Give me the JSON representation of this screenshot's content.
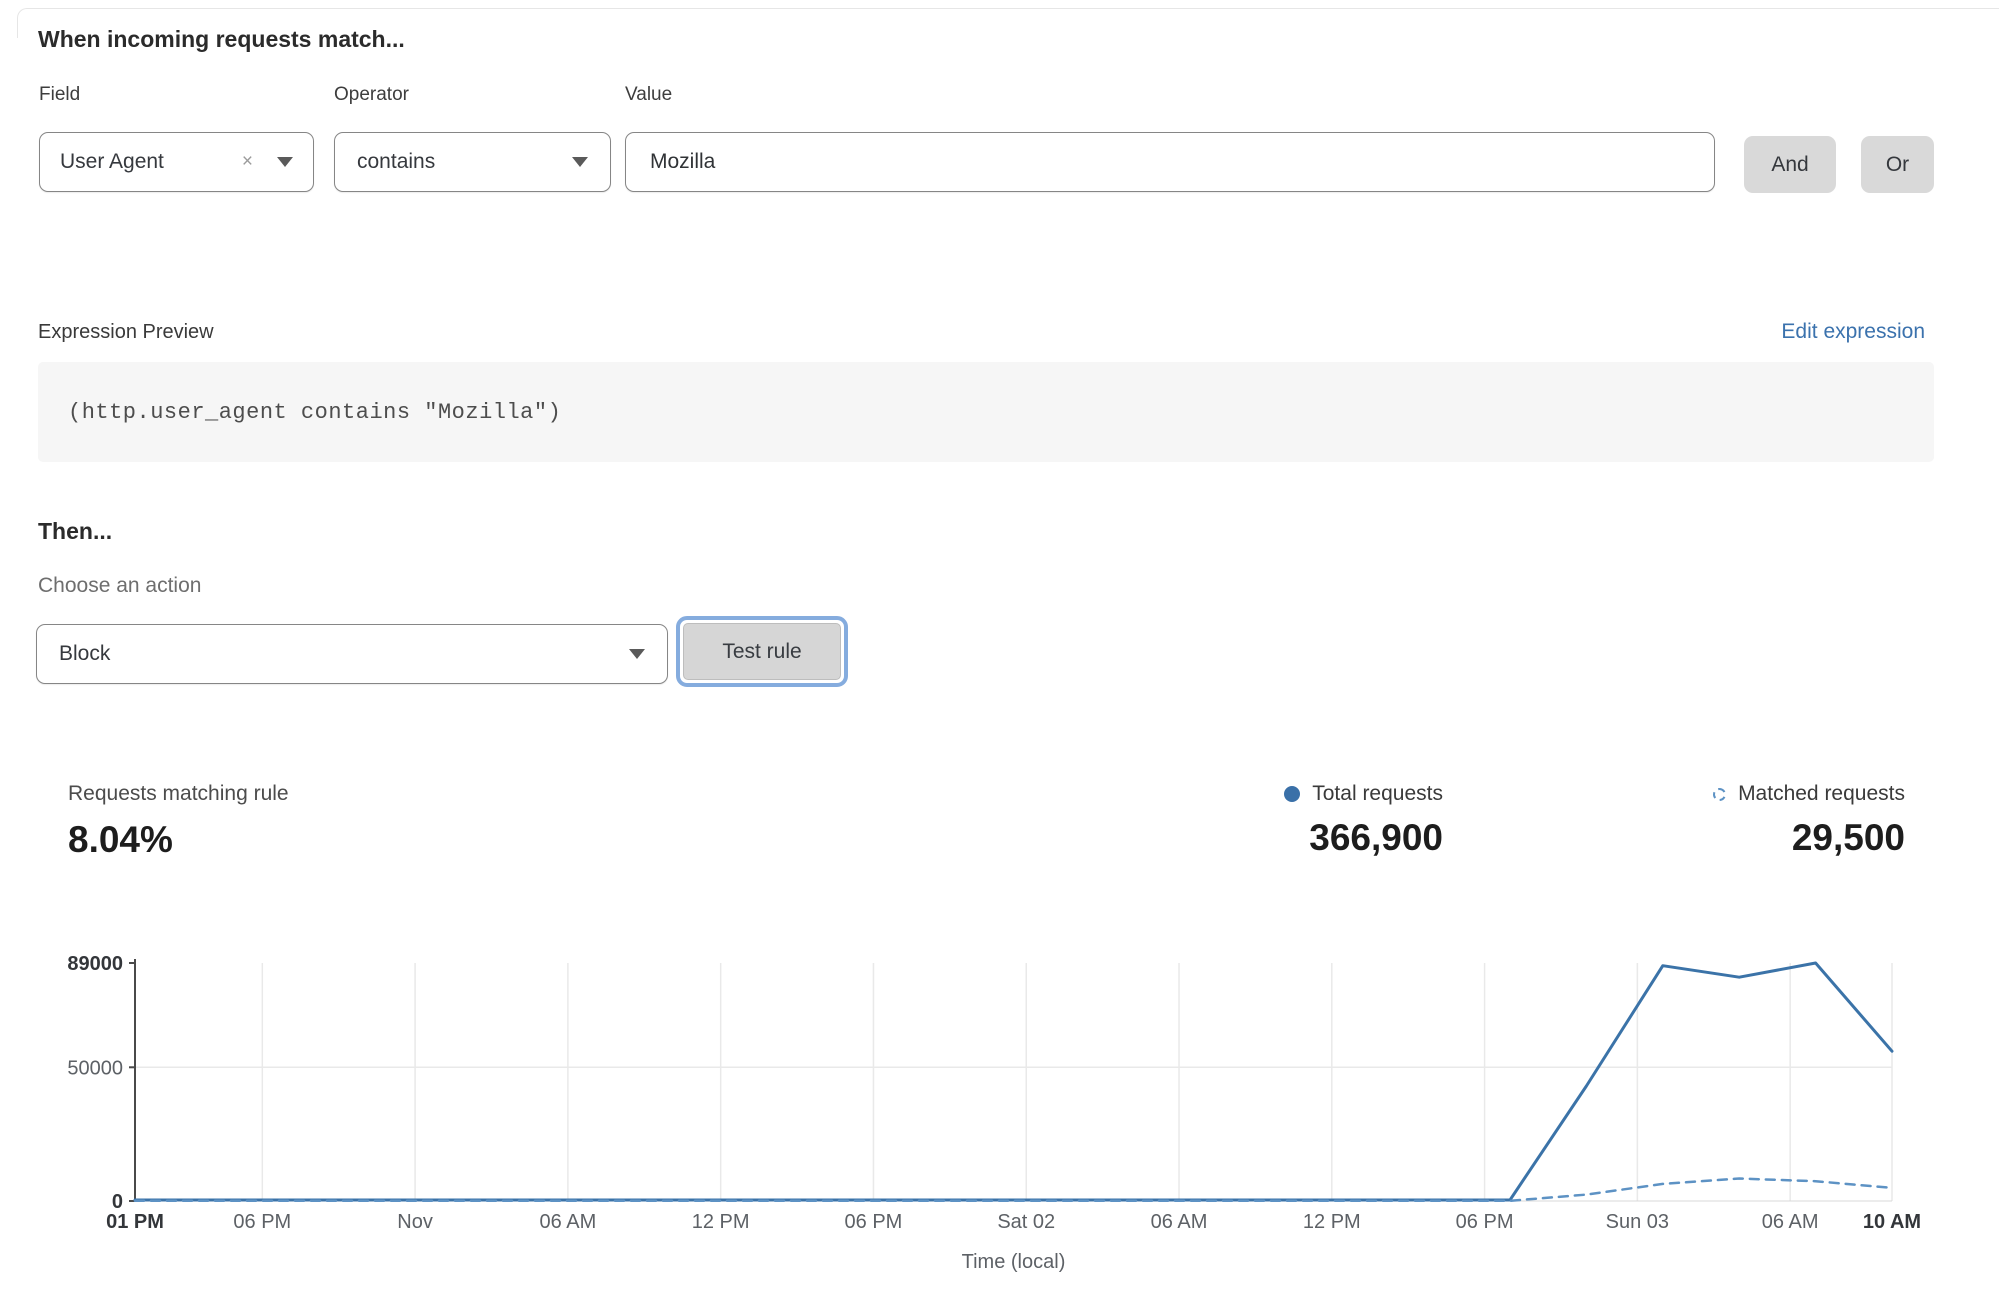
{
  "rule_builder": {
    "heading": "When incoming requests match...",
    "field": {
      "label": "Field",
      "value": "User Agent",
      "clear_icon": "×"
    },
    "operator": {
      "label": "Operator",
      "value": "contains"
    },
    "value": {
      "label": "Value",
      "value": "Mozilla"
    },
    "and_label": "And",
    "or_label": "Or"
  },
  "expression": {
    "label": "Expression Preview",
    "edit_link": "Edit expression",
    "code": "(http.user_agent contains \"Mozilla\")"
  },
  "action": {
    "heading": "Then...",
    "choose_label": "Choose an action",
    "selected": "Block",
    "test_button": "Test rule"
  },
  "stats": {
    "matching": {
      "label": "Requests matching rule",
      "value": "8.04%"
    },
    "total": {
      "label": "Total requests",
      "value": "366,900"
    },
    "matched": {
      "label": "Matched requests",
      "value": "29,500"
    }
  },
  "colors": {
    "accent_blue": "#3b72ad",
    "line_total": "#3b73a8",
    "line_matched": "#5d92c4",
    "button_gray": "#d9d9d9",
    "focus_ring": "#85acde"
  },
  "chart_data": {
    "type": "line",
    "title": "",
    "xlabel": "Time (local)",
    "ylabel": "",
    "ylim": [
      0,
      89000
    ],
    "hours_total": 69,
    "grid": "vertical-per-tick plus horizontal at 50000",
    "legend_position": "top-right above chart",
    "x_ticks": [
      {
        "h": 0,
        "label": "01 PM",
        "bold": true
      },
      {
        "h": 5,
        "label": "06 PM"
      },
      {
        "h": 11,
        "label": "Nov"
      },
      {
        "h": 17,
        "label": "06 AM"
      },
      {
        "h": 23,
        "label": "12 PM"
      },
      {
        "h": 29,
        "label": "06 PM"
      },
      {
        "h": 35,
        "label": "Sat 02"
      },
      {
        "h": 41,
        "label": "06 AM"
      },
      {
        "h": 47,
        "label": "12 PM"
      },
      {
        "h": 53,
        "label": "06 PM"
      },
      {
        "h": 59,
        "label": "Sun 03"
      },
      {
        "h": 65,
        "label": "06 AM"
      },
      {
        "h": 69,
        "label": "10 AM",
        "bold": true
      }
    ],
    "y_ticks": [
      {
        "v": 89000,
        "label": "89000",
        "bold": true
      },
      {
        "v": 50000,
        "label": "50000"
      },
      {
        "v": 0,
        "label": "0",
        "bold": true
      }
    ],
    "series": [
      {
        "name": "Total requests",
        "style": "solid",
        "color": "#3b73a8",
        "points": [
          [
            0,
            380
          ],
          [
            3,
            380
          ],
          [
            6,
            380
          ],
          [
            9,
            380
          ],
          [
            12,
            380
          ],
          [
            15,
            380
          ],
          [
            18,
            380
          ],
          [
            21,
            380
          ],
          [
            24,
            380
          ],
          [
            27,
            380
          ],
          [
            30,
            380
          ],
          [
            33,
            380
          ],
          [
            36,
            380
          ],
          [
            39,
            380
          ],
          [
            42,
            380
          ],
          [
            45,
            380
          ],
          [
            48,
            380
          ],
          [
            51,
            380
          ],
          [
            54,
            380
          ],
          [
            57,
            43000
          ],
          [
            60,
            88000
          ],
          [
            63,
            83700
          ],
          [
            66,
            89000
          ],
          [
            69,
            56000
          ]
        ]
      },
      {
        "name": "Matched requests",
        "style": "dashed",
        "color": "#5d92c4",
        "points": [
          [
            0,
            60
          ],
          [
            3,
            60
          ],
          [
            6,
            60
          ],
          [
            9,
            60
          ],
          [
            12,
            60
          ],
          [
            15,
            60
          ],
          [
            18,
            60
          ],
          [
            21,
            60
          ],
          [
            24,
            60
          ],
          [
            27,
            60
          ],
          [
            30,
            60
          ],
          [
            33,
            60
          ],
          [
            36,
            60
          ],
          [
            39,
            60
          ],
          [
            42,
            60
          ],
          [
            45,
            60
          ],
          [
            48,
            60
          ],
          [
            51,
            60
          ],
          [
            54,
            60
          ],
          [
            57,
            2400
          ],
          [
            60,
            6400
          ],
          [
            63,
            8400
          ],
          [
            66,
            7400
          ],
          [
            69,
            4900
          ]
        ]
      }
    ]
  }
}
